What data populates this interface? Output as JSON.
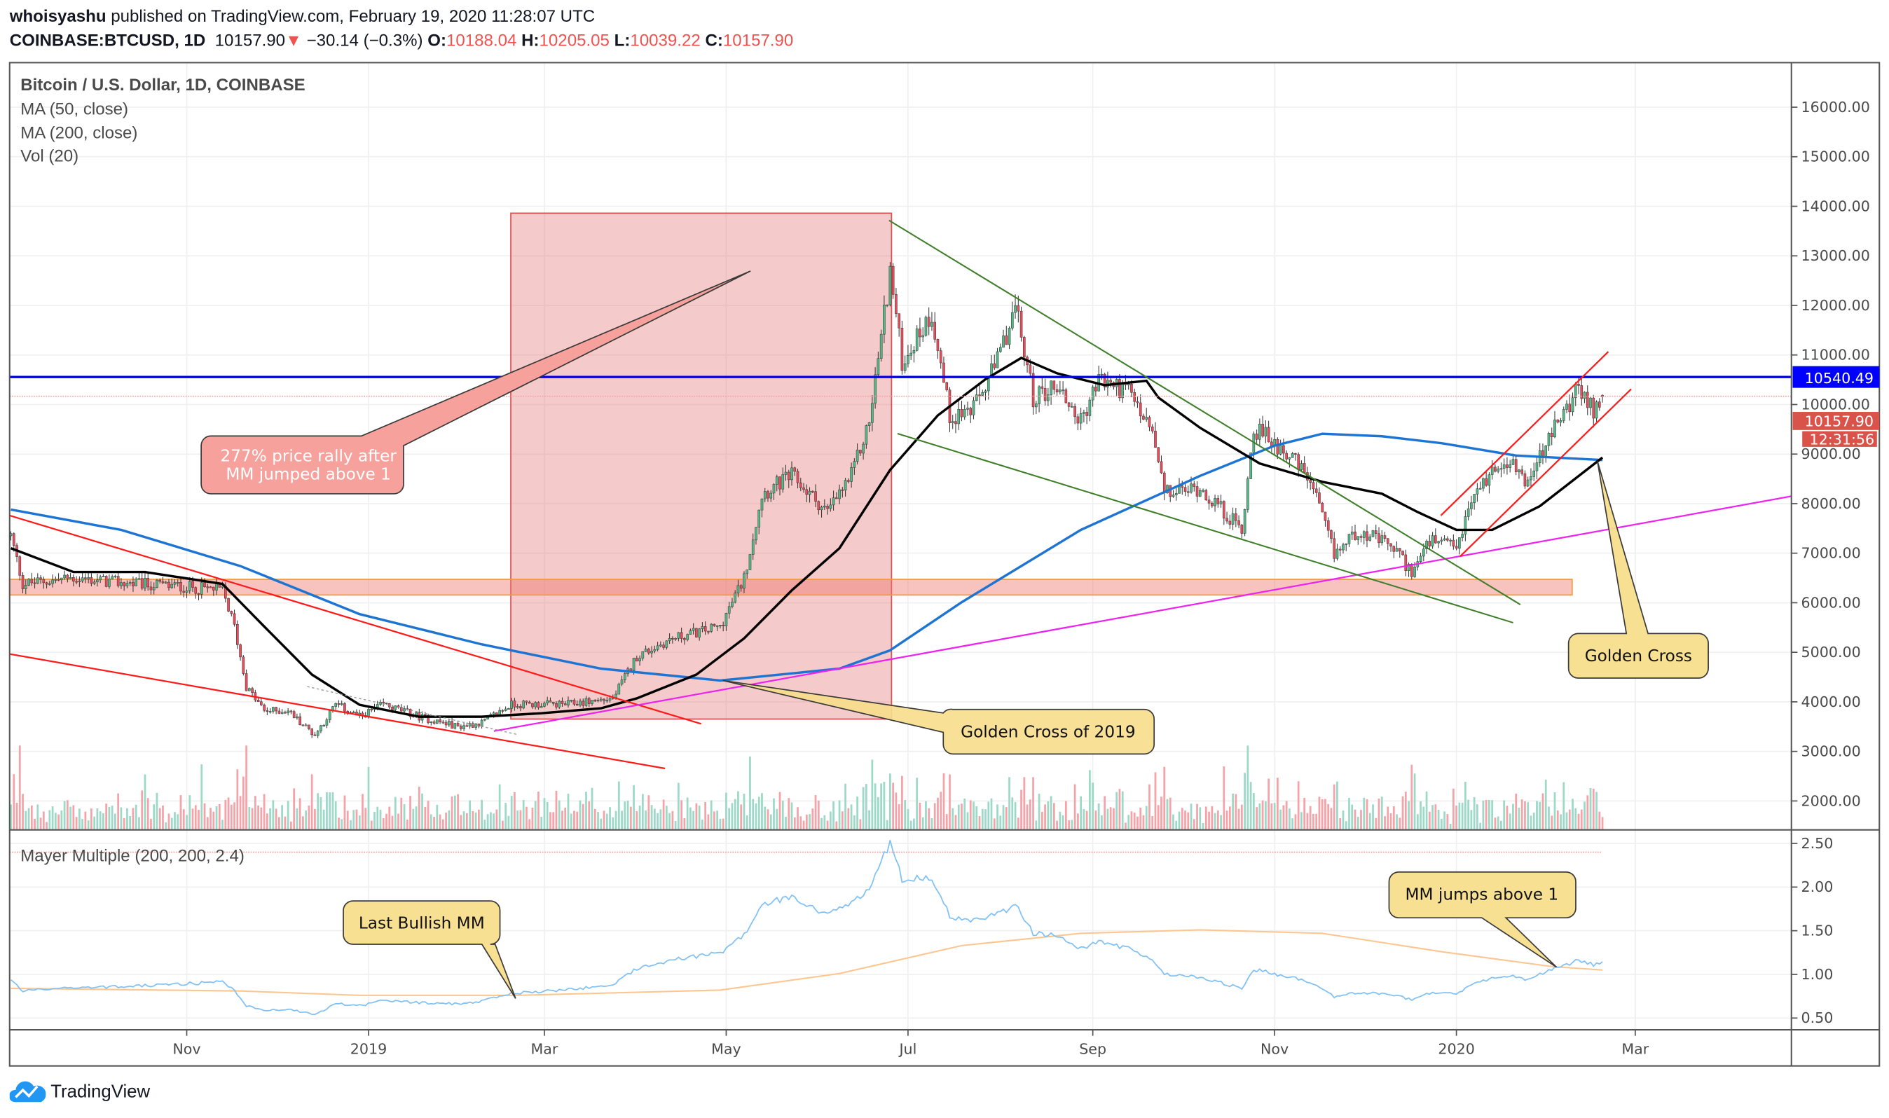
{
  "header": {
    "author": "whoisyashu",
    "published": "published on TradingView.com, February 19, 2020 11:28:07 UTC",
    "symbol": "COINBASE:BTCUSD, 1D",
    "last": "10157.90",
    "change": "−30.14 (−0.3%)",
    "o_label": "O:",
    "o": "10188.04",
    "h_label": "H:",
    "h": "10205.05",
    "l_label": "L:",
    "l": "10039.22",
    "c_label": "C:",
    "c": "10157.90"
  },
  "branding": {
    "name": "TradingView"
  },
  "chart_data": {
    "type": "candlestick",
    "title": "Bitcoin / U.S. Dollar, 1D, COINBASE",
    "legend": [
      "MA (50, close)",
      "MA (200, close)",
      "Vol (20)"
    ],
    "colors": {
      "up": "#53b987",
      "down": "#eb4d5c",
      "ma50": "#000000",
      "ma200": "#1e74d2",
      "level": "#0000ff",
      "mm": "#7fc0f5",
      "mm_signal": "#ffc58f"
    },
    "ylim": [
      1500,
      16500
    ],
    "price_ticks": [
      "16000.00",
      "15000.00",
      "14000.00",
      "13000.00",
      "12000.00",
      "11000.00",
      "10000.00",
      "9000.00",
      "8000.00",
      "7000.00",
      "6000.00",
      "5000.00",
      "4000.00",
      "3000.00",
      "2000.00"
    ],
    "price_tick_values": [
      16000,
      15000,
      14000,
      13000,
      12000,
      11000,
      10000,
      9000,
      8000,
      7000,
      6000,
      5000,
      4000,
      3000,
      2000
    ],
    "time_ticks": [
      {
        "label": "Nov",
        "date": "2018-11-01"
      },
      {
        "label": "2019",
        "date": "2019-01-01"
      },
      {
        "label": "Mar",
        "date": "2019-03-01"
      },
      {
        "label": "May",
        "date": "2019-05-01"
      },
      {
        "label": "Jul",
        "date": "2019-07-01"
      },
      {
        "label": "Sep",
        "date": "2019-09-01"
      },
      {
        "label": "Nov",
        "date": "2019-11-01"
      },
      {
        "label": "2020",
        "date": "2020-01-01"
      },
      {
        "label": "Mar",
        "date": "2020-03-01"
      }
    ],
    "price_tags": {
      "level": "10540.49",
      "last": "10157.90",
      "countdown": "12:31:56"
    },
    "level_value": 10540.49,
    "last_bar": {
      "open": 10188.04,
      "high": 10205.05,
      "low": 10039.22,
      "close": 10157.9
    },
    "close": [
      [
        "2018-09-03",
        7350
      ],
      [
        "2018-09-07",
        6380
      ],
      [
        "2018-09-24",
        6500
      ],
      [
        "2018-10-10",
        6400
      ],
      [
        "2018-10-30",
        6330
      ],
      [
        "2018-11-13",
        6250
      ],
      [
        "2018-11-17",
        5520
      ],
      [
        "2018-11-21",
        4300
      ],
      [
        "2018-11-27",
        3820
      ],
      [
        "2018-12-05",
        3820
      ],
      [
        "2018-12-14",
        3330
      ],
      [
        "2018-12-21",
        3950
      ],
      [
        "2018-12-29",
        3700
      ],
      [
        "2019-01-06",
        3950
      ],
      [
        "2019-01-18",
        3700
      ],
      [
        "2019-01-31",
        3500
      ],
      [
        "2019-02-08",
        3580
      ],
      [
        "2019-02-18",
        3950
      ],
      [
        "2019-03-08",
        3950
      ],
      [
        "2019-03-24",
        4070
      ],
      [
        "2019-04-01",
        4920
      ],
      [
        "2019-04-13",
        5280
      ],
      [
        "2019-04-29",
        5520
      ],
      [
        "2019-05-07",
        6500
      ],
      [
        "2019-05-13",
        8200
      ],
      [
        "2019-05-23",
        8560
      ],
      [
        "2019-06-04",
        7830
      ],
      [
        "2019-06-12",
        8560
      ],
      [
        "2019-06-18",
        9650
      ],
      [
        "2019-06-25",
        12690
      ],
      [
        "2019-06-29",
        10870
      ],
      [
        "2019-07-09",
        11840
      ],
      [
        "2019-07-15",
        9770
      ],
      [
        "2019-07-23",
        9900
      ],
      [
        "2019-07-31",
        10870
      ],
      [
        "2019-08-06",
        11970
      ],
      [
        "2019-08-12",
        10140
      ],
      [
        "2019-08-20",
        10390
      ],
      [
        "2019-08-28",
        9650
      ],
      [
        "2019-09-03",
        10510
      ],
      [
        "2019-09-13",
        10260
      ],
      [
        "2019-09-21",
        9410
      ],
      [
        "2019-09-25",
        8200
      ],
      [
        "2019-10-07",
        8320
      ],
      [
        "2019-10-21",
        7470
      ],
      [
        "2019-10-25",
        9530
      ],
      [
        "2019-11-05",
        9050
      ],
      [
        "2019-11-13",
        8440
      ],
      [
        "2019-11-21",
        6980
      ],
      [
        "2019-11-29",
        7470
      ],
      [
        "2019-12-11",
        7100
      ],
      [
        "2019-12-17",
        6620
      ],
      [
        "2019-12-23",
        7230
      ],
      [
        "2020-01-01",
        7100
      ],
      [
        "2020-01-07",
        8200
      ],
      [
        "2020-01-17",
        8930
      ],
      [
        "2020-01-25",
        8440
      ],
      [
        "2020-02-02",
        9410
      ],
      [
        "2020-02-10",
        10260
      ],
      [
        "2020-02-16",
        9900
      ],
      [
        "2020-02-19",
        10157.9
      ]
    ],
    "ma50": [
      [
        "2018-09-03",
        7100
      ],
      [
        "2018-09-24",
        6620
      ],
      [
        "2018-10-18",
        6620
      ],
      [
        "2018-11-13",
        6380
      ],
      [
        "2018-11-27",
        5520
      ],
      [
        "2018-12-13",
        4550
      ],
      [
        "2018-12-29",
        3940
      ],
      [
        "2019-01-18",
        3700
      ],
      [
        "2019-02-08",
        3700
      ],
      [
        "2019-02-28",
        3770
      ],
      [
        "2019-03-20",
        3870
      ],
      [
        "2019-04-01",
        4070
      ],
      [
        "2019-04-21",
        4550
      ],
      [
        "2019-05-07",
        5280
      ],
      [
        "2019-05-23",
        6250
      ],
      [
        "2019-06-08",
        7100
      ],
      [
        "2019-06-25",
        8680
      ],
      [
        "2019-07-11",
        9780
      ],
      [
        "2019-07-27",
        10510
      ],
      [
        "2019-08-08",
        10940
      ],
      [
        "2019-08-20",
        10630
      ],
      [
        "2019-09-05",
        10390
      ],
      [
        "2019-09-19",
        10480
      ],
      [
        "2019-09-23",
        10140
      ],
      [
        "2019-10-07",
        9530
      ],
      [
        "2019-10-27",
        8810
      ],
      [
        "2019-11-17",
        8440
      ],
      [
        "2019-12-07",
        8200
      ],
      [
        "2019-12-19",
        7830
      ],
      [
        "2020-01-01",
        7470
      ],
      [
        "2020-01-13",
        7470
      ],
      [
        "2020-01-29",
        7950
      ],
      [
        "2020-02-19",
        8930
      ]
    ],
    "ma200": [
      [
        "2018-09-03",
        7880
      ],
      [
        "2018-10-10",
        7470
      ],
      [
        "2018-11-19",
        6740
      ],
      [
        "2018-12-29",
        5770
      ],
      [
        "2019-02-08",
        5160
      ],
      [
        "2019-03-20",
        4670
      ],
      [
        "2019-04-29",
        4430
      ],
      [
        "2019-06-08",
        4670
      ],
      [
        "2019-06-25",
        5040
      ],
      [
        "2019-07-19",
        6010
      ],
      [
        "2019-08-28",
        7470
      ],
      [
        "2019-10-07",
        8560
      ],
      [
        "2019-11-01",
        9170
      ],
      [
        "2019-11-17",
        9410
      ],
      [
        "2019-12-07",
        9360
      ],
      [
        "2019-12-27",
        9220
      ],
      [
        "2020-01-21",
        8970
      ],
      [
        "2020-02-19",
        8880
      ]
    ],
    "mayer_multiple": {
      "label": "Mayer Multiple (200, 200, 2.4)",
      "ticks": [
        "2.50",
        "2.00",
        "1.50",
        "1.00",
        "0.50"
      ],
      "tick_values": [
        2.5,
        2.0,
        1.5,
        1.0,
        0.5
      ],
      "ylim": [
        0.4,
        2.6
      ],
      "threshold": 2.4,
      "signal": [
        [
          "2018-09-03",
          0.84
        ],
        [
          "2018-11-19",
          0.81
        ],
        [
          "2018-12-29",
          0.76
        ],
        [
          "2019-02-20",
          0.76
        ],
        [
          "2019-04-29",
          0.82
        ],
        [
          "2019-06-08",
          1.01
        ],
        [
          "2019-07-19",
          1.33
        ],
        [
          "2019-08-28",
          1.47
        ],
        [
          "2019-10-07",
          1.51
        ],
        [
          "2019-11-17",
          1.47
        ],
        [
          "2019-12-27",
          1.26
        ],
        [
          "2020-02-02",
          1.09
        ],
        [
          "2020-02-19",
          1.05
        ]
      ]
    },
    "annotations": {
      "rally": [
        "277% price rally after",
        "MM jumped above 1"
      ],
      "golden_cross_2019": "Golden Cross of 2019",
      "golden_cross": "Golden Cross",
      "last_bullish": "Last Bullish MM",
      "mm_jumps": "MM jumps above 1"
    }
  }
}
